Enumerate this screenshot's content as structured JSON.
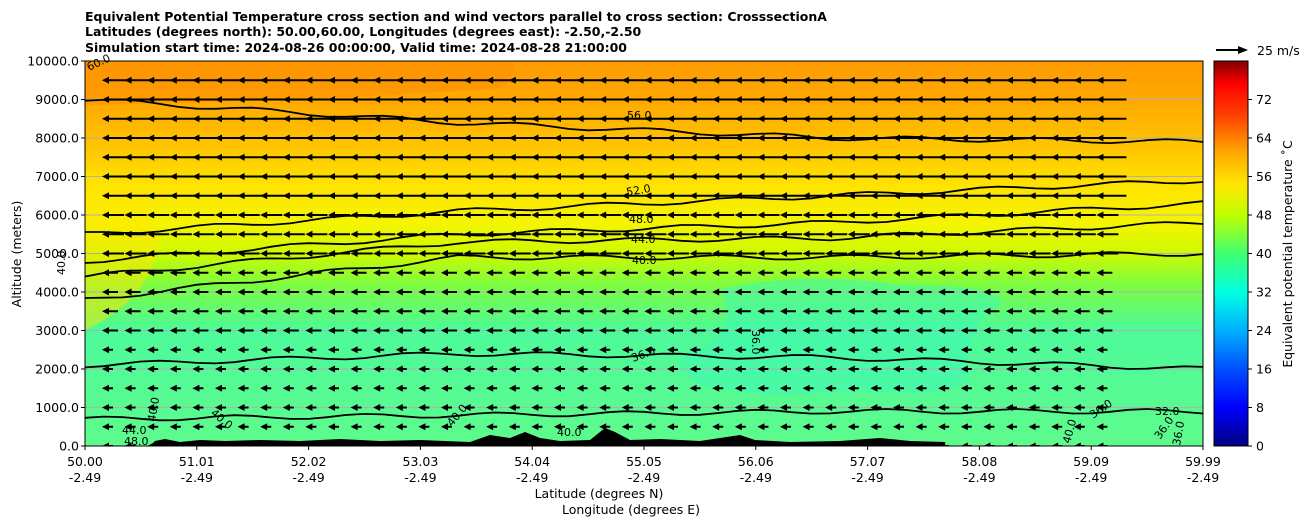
{
  "chart_data": {
    "type": "contour",
    "title_lines": [
      "Equivalent Potential Temperature cross section and wind vectors parallel to cross section: CrosssectionA",
      "Latitudes (degrees north): 50.00,60.00, Longitudes (degrees east): -2.50,-2.50",
      "Simulation start time: 2024-08-26 00:00:00, Valid time: 2024-08-28 21:00:00"
    ],
    "ylabel": "Altitude (meters)",
    "xlabel_lines": [
      "Latitude (degrees N)",
      "Longitude (degrees E)"
    ],
    "x_ticks": [
      {
        "lat": "50.00",
        "lon": "-2.49"
      },
      {
        "lat": "51.01",
        "lon": "-2.49"
      },
      {
        "lat": "52.02",
        "lon": "-2.49"
      },
      {
        "lat": "53.03",
        "lon": "-2.49"
      },
      {
        "lat": "54.04",
        "lon": "-2.49"
      },
      {
        "lat": "55.05",
        "lon": "-2.49"
      },
      {
        "lat": "56.06",
        "lon": "-2.49"
      },
      {
        "lat": "57.07",
        "lon": "-2.49"
      },
      {
        "lat": "58.08",
        "lon": "-2.49"
      },
      {
        "lat": "59.09",
        "lon": "-2.49"
      },
      {
        "lat": "59.99",
        "lon": "-2.49"
      }
    ],
    "xlim": [
      50.0,
      59.99
    ],
    "y_ticks": [
      "0.0",
      "1000.0",
      "2000.0",
      "3000.0",
      "4000.0",
      "5000.0",
      "6000.0",
      "7000.0",
      "8000.0",
      "9000.0",
      "10000.0"
    ],
    "ylim": [
      0,
      10000
    ],
    "grid": "horizontal",
    "colorbar": {
      "label": "Equivalent potential temperature ˚C",
      "range": [
        0,
        80
      ],
      "ticks": [
        "0",
        "8",
        "16",
        "24",
        "32",
        "40",
        "48",
        "56",
        "64",
        "72"
      ]
    },
    "quiver_key": "25 m/s",
    "contour_levels": [
      {
        "level": 56,
        "label": "56.0",
        "altitude_m": [
          9000,
          8400,
          8000,
          7900
        ]
      },
      {
        "level": 52,
        "label": "52.0",
        "altitude_m": [
          5500,
          6100,
          6500,
          6900
        ]
      },
      {
        "level": 48,
        "label": "48.0",
        "altitude_m": [
          4800,
          5500,
          5800,
          6300
        ]
      },
      {
        "level": 44,
        "label": "44.0",
        "altitude_m": [
          4400,
          5300,
          5400,
          5800
        ]
      },
      {
        "level": 40,
        "label": "40.0",
        "altitude_m": [
          3800,
          4900,
          4900,
          5000
        ]
      },
      {
        "level": 36,
        "label": "36.0",
        "altitude_m": [
          2100,
          2400,
          2300,
          2000
        ]
      },
      {
        "level": 32,
        "label": "32.0",
        "altitude_m": [
          700,
          800,
          900,
          900
        ]
      }
    ],
    "contour_labels": [
      "60.0",
      "56.0",
      "52.0",
      "48.0",
      "44.0",
      "40.0",
      "36.0",
      "36.0",
      "40.0",
      "40.0",
      "40.0",
      "44.0",
      "48.0",
      "40.0",
      "36.0",
      "32.0",
      "36.0",
      "36.0",
      "40.0",
      "40.0"
    ]
  }
}
